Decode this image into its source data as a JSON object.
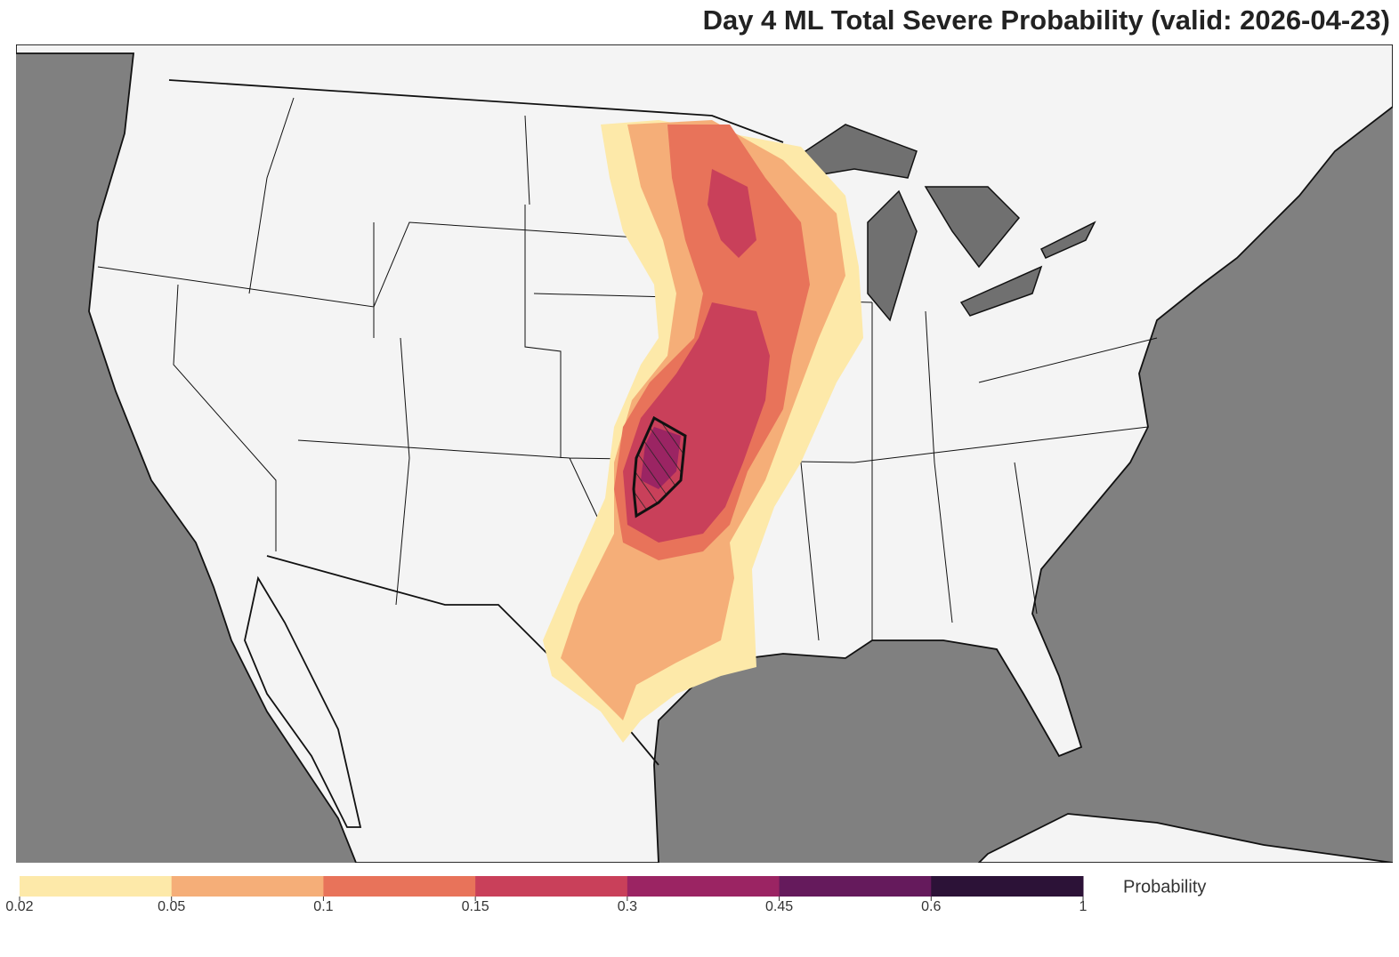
{
  "title": "Day 4 ML Total Severe Probability (valid: 2026-04-23)",
  "colorbar": {
    "label": "Probability",
    "levels": [
      0.02,
      0.05,
      0.1,
      0.15,
      0.3,
      0.45,
      0.6,
      1
    ],
    "colors": [
      "#fde9a9",
      "#f5ae78",
      "#e8735a",
      "#c9405a",
      "#9b2463",
      "#651a5c",
      "#2c1237"
    ]
  }
}
